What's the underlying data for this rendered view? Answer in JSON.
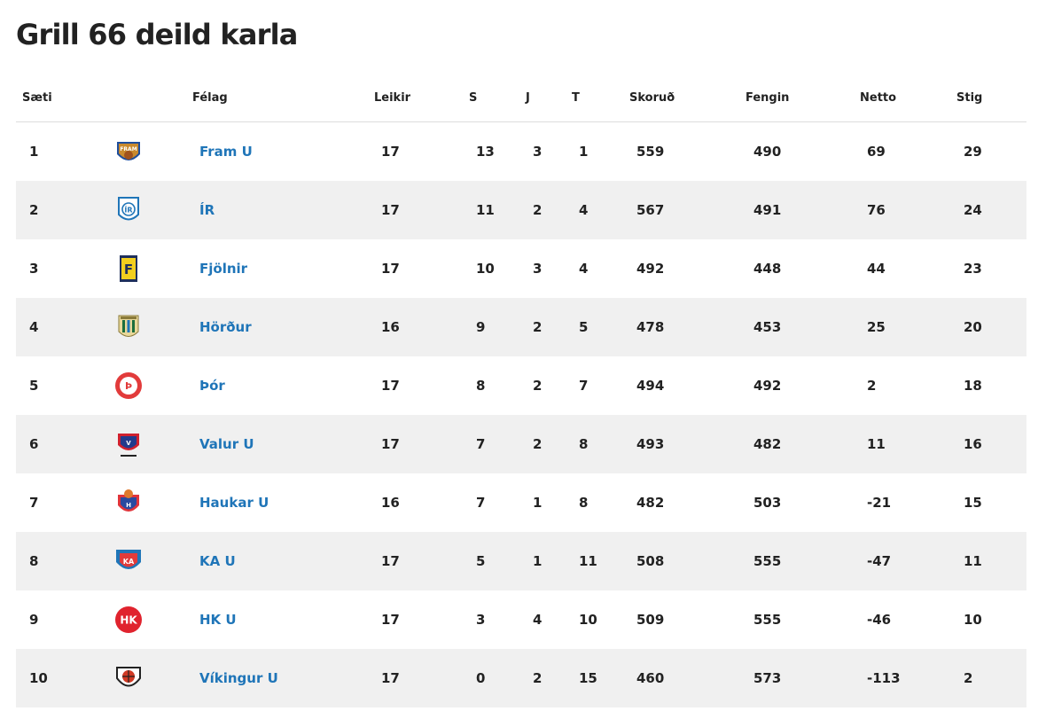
{
  "title": "Grill 66 deild karla",
  "columns": {
    "saeti": "Sæti",
    "felag": "Félag",
    "leikir": "Leikir",
    "s": "S",
    "j": "J",
    "t": "T",
    "skorud": "Skoruð",
    "fengin": "Fengin",
    "netto": "Netto",
    "stig": "Stig"
  },
  "rows": [
    {
      "pos": "1",
      "team": "Fram U",
      "logo": "fram-logo-icon",
      "played": "17",
      "w": "13",
      "d": "3",
      "l": "1",
      "scored": "559",
      "conceded": "490",
      "diff": "69",
      "points": "29"
    },
    {
      "pos": "2",
      "team": "ÍR",
      "logo": "ir-logo-icon",
      "played": "17",
      "w": "11",
      "d": "2",
      "l": "4",
      "scored": "567",
      "conceded": "491",
      "diff": "76",
      "points": "24"
    },
    {
      "pos": "3",
      "team": "Fjölnir",
      "logo": "fjolnir-logo-icon",
      "played": "17",
      "w": "10",
      "d": "3",
      "l": "4",
      "scored": "492",
      "conceded": "448",
      "diff": "44",
      "points": "23"
    },
    {
      "pos": "4",
      "team": "Hörður",
      "logo": "hordur-logo-icon",
      "played": "16",
      "w": "9",
      "d": "2",
      "l": "5",
      "scored": "478",
      "conceded": "453",
      "diff": "25",
      "points": "20"
    },
    {
      "pos": "5",
      "team": "Þór",
      "logo": "thor-logo-icon",
      "played": "17",
      "w": "8",
      "d": "2",
      "l": "7",
      "scored": "494",
      "conceded": "492",
      "diff": "2",
      "points": "18"
    },
    {
      "pos": "6",
      "team": "Valur U",
      "logo": "valur-logo-icon",
      "played": "17",
      "w": "7",
      "d": "2",
      "l": "8",
      "scored": "493",
      "conceded": "482",
      "diff": "11",
      "points": "16"
    },
    {
      "pos": "7",
      "team": "Haukar U",
      "logo": "haukar-logo-icon",
      "played": "16",
      "w": "7",
      "d": "1",
      "l": "8",
      "scored": "482",
      "conceded": "503",
      "diff": "-21",
      "points": "15"
    },
    {
      "pos": "8",
      "team": "KA U",
      "logo": "ka-logo-icon",
      "played": "17",
      "w": "5",
      "d": "1",
      "l": "11",
      "scored": "508",
      "conceded": "555",
      "diff": "-47",
      "points": "11"
    },
    {
      "pos": "9",
      "team": "HK U",
      "logo": "hk-logo-icon",
      "played": "17",
      "w": "3",
      "d": "4",
      "l": "10",
      "scored": "509",
      "conceded": "555",
      "diff": "-46",
      "points": "10"
    },
    {
      "pos": "10",
      "team": "Víkingur U",
      "logo": "vikingur-logo-icon",
      "played": "17",
      "w": "0",
      "d": "2",
      "l": "15",
      "scored": "460",
      "conceded": "573",
      "diff": "-113",
      "points": "2"
    }
  ],
  "colors": {
    "link": "#1f75b8",
    "stripe": "#f0f0f0",
    "text": "#222222"
  }
}
